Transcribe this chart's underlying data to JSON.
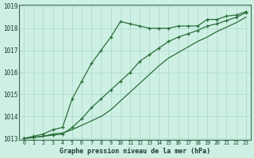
{
  "xlabel": "Graphe pression niveau de la mer (hPa)",
  "background_color": "#cef0e4",
  "grid_color": "#a8d8c8",
  "line_color": "#2a6e3a",
  "x_values": [
    0,
    1,
    2,
    3,
    4,
    5,
    6,
    7,
    8,
    9,
    10,
    11,
    12,
    13,
    14,
    15,
    16,
    17,
    18,
    19,
    20,
    21,
    22,
    23
  ],
  "series1": [
    1013.0,
    1013.1,
    1013.2,
    1013.4,
    1013.5,
    1014.8,
    1015.6,
    1016.4,
    1017.0,
    1017.6,
    1018.3,
    1018.2,
    1018.1,
    1018.0,
    1018.0,
    1018.0,
    1018.1,
    1018.1,
    1018.1,
    1018.4,
    1018.4,
    1018.55,
    1018.6,
    1018.75
  ],
  "series2": [
    1013.0,
    1013.05,
    1013.1,
    1013.15,
    1013.2,
    1013.5,
    1013.9,
    1014.4,
    1014.8,
    1015.2,
    1015.6,
    1016.0,
    1016.5,
    1016.8,
    1017.1,
    1017.4,
    1017.6,
    1017.75,
    1017.9,
    1018.1,
    1018.2,
    1018.35,
    1018.5,
    1018.7
  ],
  "series3": [
    1013.0,
    1013.05,
    1013.1,
    1013.2,
    1013.25,
    1013.4,
    1013.6,
    1013.8,
    1014.0,
    1014.3,
    1014.7,
    1015.1,
    1015.5,
    1015.9,
    1016.3,
    1016.65,
    1016.9,
    1017.15,
    1017.4,
    1017.6,
    1017.85,
    1018.05,
    1018.25,
    1018.5
  ],
  "ylim": [
    1013.0,
    1019.0
  ],
  "xlim": [
    -0.5,
    23.5
  ],
  "yticks": [
    1013,
    1014,
    1015,
    1016,
    1017,
    1018,
    1019
  ],
  "xticks": [
    0,
    1,
    2,
    3,
    4,
    5,
    6,
    7,
    8,
    9,
    10,
    11,
    12,
    13,
    14,
    15,
    16,
    17,
    18,
    19,
    20,
    21,
    22,
    23
  ]
}
